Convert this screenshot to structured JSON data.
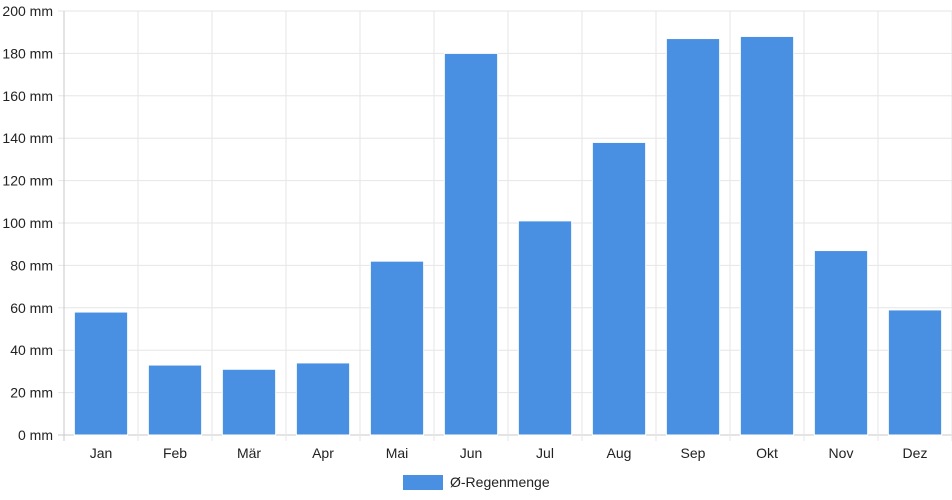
{
  "chart_data": {
    "type": "bar",
    "categories": [
      "Jan",
      "Feb",
      "Mär",
      "Apr",
      "Mai",
      "Jun",
      "Jul",
      "Aug",
      "Sep",
      "Okt",
      "Nov",
      "Dez"
    ],
    "series": [
      {
        "name": "Ø-Regenmenge",
        "values": [
          58,
          33,
          31,
          34,
          82,
          180,
          101,
          138,
          187,
          188,
          87,
          59
        ],
        "color": "#4a90e2"
      }
    ],
    "y_ticks": [
      "0 mm",
      "20 mm",
      "40 mm",
      "60 mm",
      "80 mm",
      "100 mm",
      "120 mm",
      "140 mm",
      "160 mm",
      "180 mm",
      "200 mm"
    ],
    "ylim": [
      0,
      200
    ],
    "grid": true,
    "legend_position": "bottom-center"
  }
}
